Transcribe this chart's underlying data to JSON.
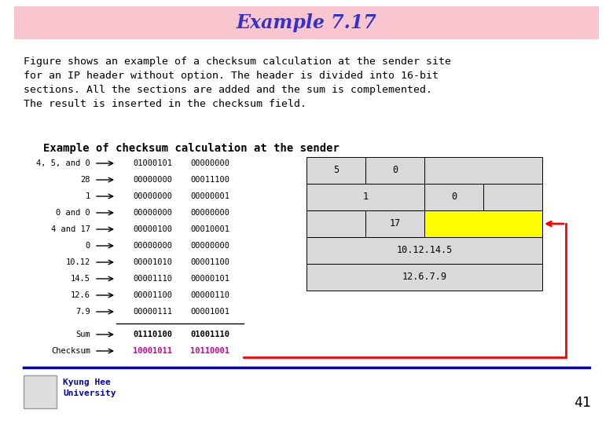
{
  "title": "Example 7.17",
  "title_bg": "#f9c6d0",
  "title_color": "#3333cc",
  "body_text_lines": [
    "Figure shows an example of a checksum calculation at the sender site",
    "for an IP header without option. The header is divided into 16-bit",
    "sections. All the sections are added and the sum is complemented.",
    "The result is inserted in the checksum field."
  ],
  "subtitle": "Example of checksum calculation at the sender",
  "left_labels": [
    "4, 5, and 0",
    "28",
    "1",
    "0 and 0",
    "4 and 17",
    "0",
    "10.12",
    "14.5",
    "12.6",
    "7.9"
  ],
  "left_binary1": [
    "01000101",
    "00000000",
    "00000000",
    "00000000",
    "00000100",
    "00000000",
    "00001010",
    "00001110",
    "00001100",
    "00000111"
  ],
  "left_binary2": [
    "00000000",
    "00011100",
    "00000001",
    "00000000",
    "00010001",
    "00000000",
    "00001100",
    "00000101",
    "00000110",
    "00001001"
  ],
  "sum_label": "Sum",
  "sum_b1": "01110100",
  "sum_b2": "01001110",
  "checksum_label": "Checksum",
  "checksum_b1": "10001011",
  "checksum_b2": "10110001",
  "checksum_color": "#cc0099",
  "table_bg": "#d9d9d9",
  "table_yellow": "#ffff00",
  "footer_line_color": "#0000cc",
  "page_number": "41",
  "university_line1": "Kyung Hee",
  "university_line2": "University"
}
